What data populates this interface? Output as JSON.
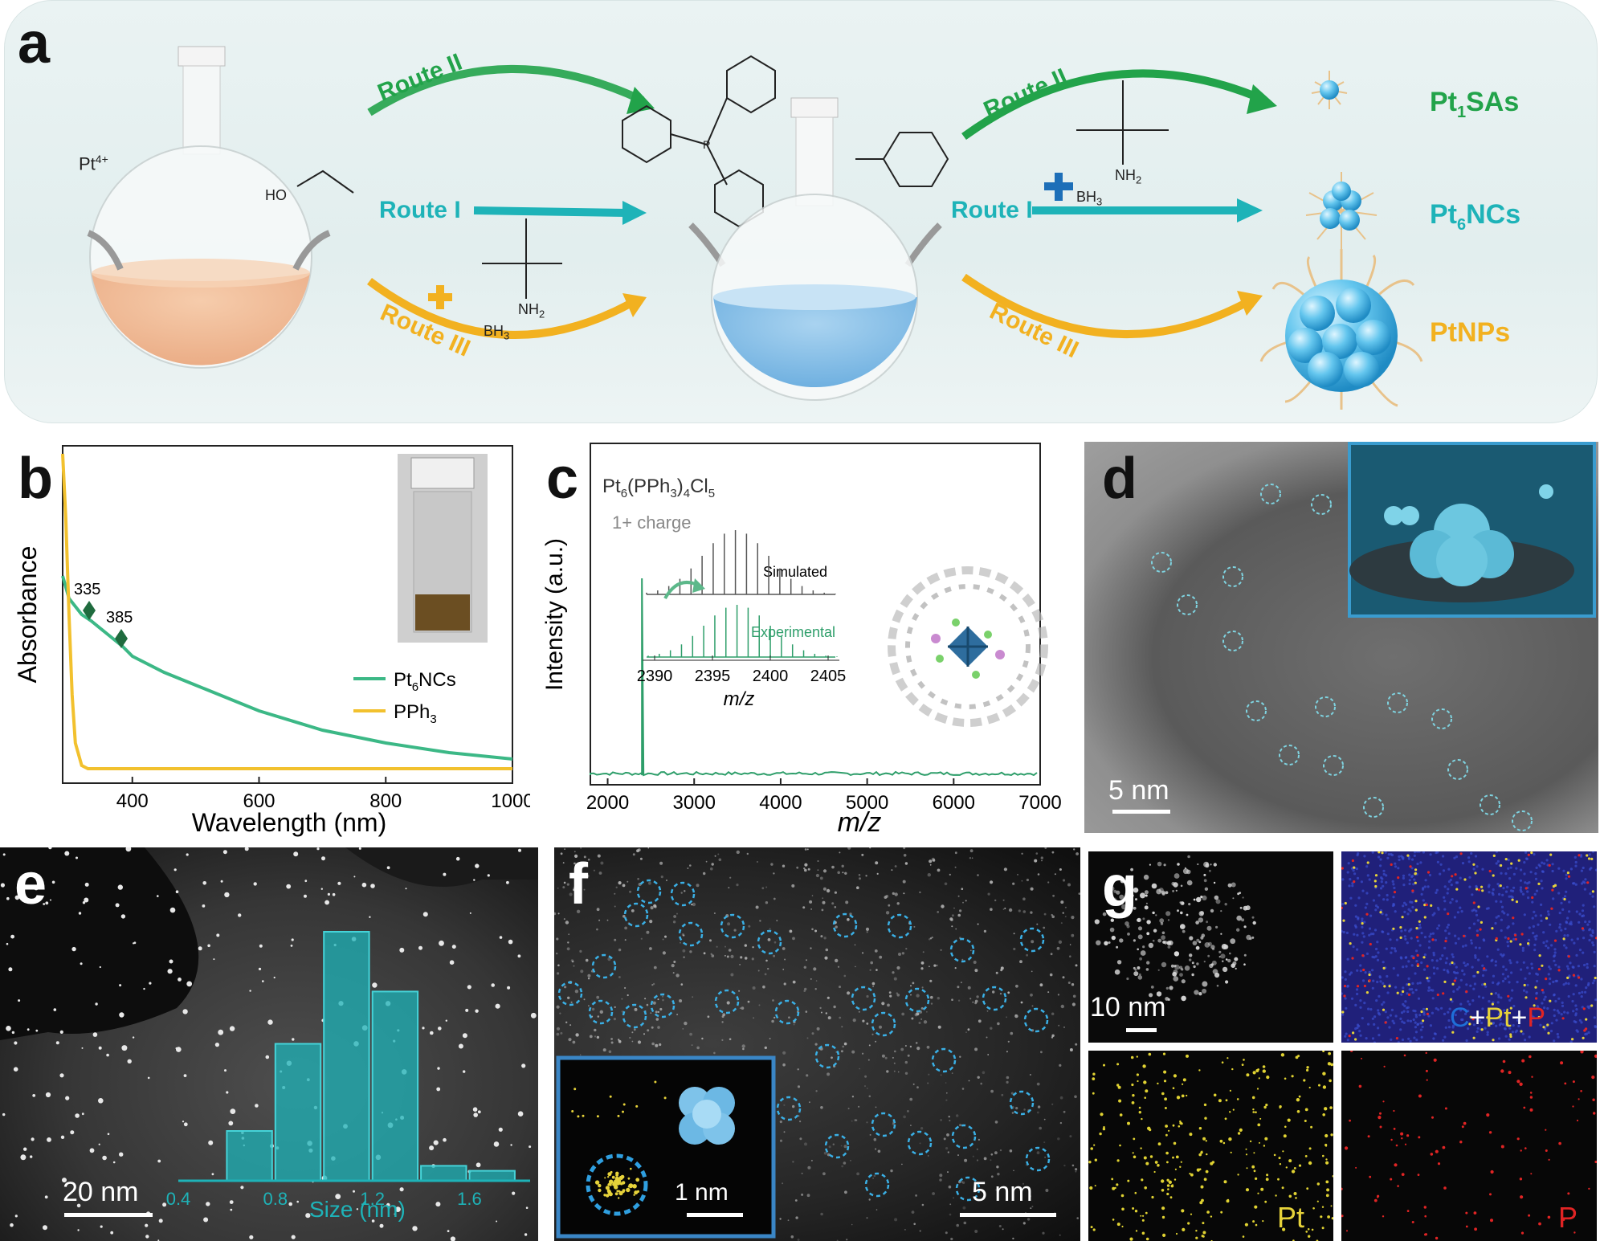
{
  "panel_labels": {
    "a": "a",
    "b": "b",
    "c": "c",
    "d": "d",
    "e": "e",
    "f": "f",
    "g": "g"
  },
  "scheme": {
    "precursor": "Pt",
    "precursor_sup": "4+",
    "ethanol_label": "HO",
    "amine_label": "NH",
    "amine_sub": "2",
    "borane_label": "BH",
    "borane_sub": "3",
    "phosphine_atom": "P",
    "routes_left": [
      "Route II",
      "Route I",
      "Route III"
    ],
    "routes_right": [
      "Route II",
      "Route I",
      "Route III"
    ],
    "products": {
      "p1_main": "Pt",
      "p1_sub": "1",
      "p1_rest": "SAs",
      "p2_main": "Pt",
      "p2_sub": "6",
      "p2_rest": "NCs",
      "p3": "PtNPs"
    },
    "colors": {
      "route2": "#22a34a",
      "route1": "#1eb3b8",
      "route3": "#f2b120"
    }
  },
  "chart_b": {
    "ylabel": "Absorbance",
    "xlabel": "Wavelength (nm)",
    "xticks": [
      400,
      600,
      800,
      1000
    ],
    "peak_labels": [
      "335",
      "385"
    ],
    "legend": [
      {
        "main": "Pt",
        "sub": "6",
        "rest": "NCs",
        "color": "#3cb886"
      },
      {
        "main": "PPh",
        "sub": "3",
        "rest": "",
        "color": "#f2c12e"
      }
    ]
  },
  "chart_c": {
    "formula": {
      "a": "Pt",
      "a_sub": "6",
      "b": "(PPh",
      "b_sub": "3",
      "c": ")",
      "c_sub": "4",
      "d": "Cl",
      "d_sub": "5"
    },
    "charge": "1+ charge",
    "ylabel": "Intensity (a.u.)",
    "xlabel": "m/z",
    "xticks": [
      2000,
      3000,
      4000,
      5000,
      6000,
      7000
    ],
    "inset_simulated": "Simulated",
    "inset_experimental": "Experimental",
    "inset_xticks": [
      2390,
      2395,
      2400,
      2405
    ],
    "inset_xlabel": "m/z"
  },
  "chart_data": [
    {
      "type": "line",
      "xlabel": "Wavelength (nm)",
      "ylabel": "Absorbance",
      "xlim": [
        290,
        1000
      ],
      "ylim": [
        0,
        1
      ],
      "series": [
        {
          "name": "Pt6NCs",
          "x": [
            290,
            300,
            320,
            335,
            360,
            385,
            400,
            450,
            500,
            600,
            700,
            800,
            900,
            1000
          ],
          "values": [
            0.62,
            0.55,
            0.5,
            0.48,
            0.44,
            0.4,
            0.37,
            0.32,
            0.28,
            0.2,
            0.14,
            0.1,
            0.07,
            0.05
          ]
        },
        {
          "name": "PPh3",
          "x": [
            290,
            295,
            300,
            305,
            310,
            320,
            330,
            350,
            400,
            600,
            800,
            1000
          ],
          "values": [
            1.0,
            0.8,
            0.5,
            0.25,
            0.1,
            0.03,
            0.02,
            0.02,
            0.02,
            0.02,
            0.02,
            0.02
          ]
        }
      ],
      "annotations": [
        {
          "x": 335,
          "text": "335"
        },
        {
          "x": 385,
          "text": "385"
        }
      ]
    },
    {
      "type": "line",
      "xlabel": "m/z",
      "ylabel": "Intensity (a.u.)",
      "xlim": [
        1800,
        7000
      ],
      "series": [
        {
          "name": "Pt6(PPh3)4Cl5",
          "peak_x": 2396,
          "peak_relative": 1.0
        }
      ]
    }
  ],
  "panel_d": {
    "scale": "5 nm"
  },
  "panel_e": {
    "scale": "20 nm",
    "hist_xlabel": "Size (nm)",
    "hist_ticks": [
      "0.4",
      "0.8",
      "1.2",
      "1.6"
    ],
    "hist_bins": [
      0.7,
      0.9,
      1.1,
      1.3,
      1.5,
      1.7
    ],
    "hist_values": [
      0.2,
      0.55,
      1.0,
      0.76,
      0.06,
      0.04
    ]
  },
  "panel_f": {
    "scale": "5 nm",
    "inset_scale": "1 nm"
  },
  "panel_g": {
    "scale": "10 nm",
    "overlay_c": "C",
    "overlay_plus1": "+",
    "overlay_pt": "Pt",
    "overlay_plus2": "+",
    "overlay_p": "P",
    "map_pt": "Pt",
    "map_p": "P"
  }
}
